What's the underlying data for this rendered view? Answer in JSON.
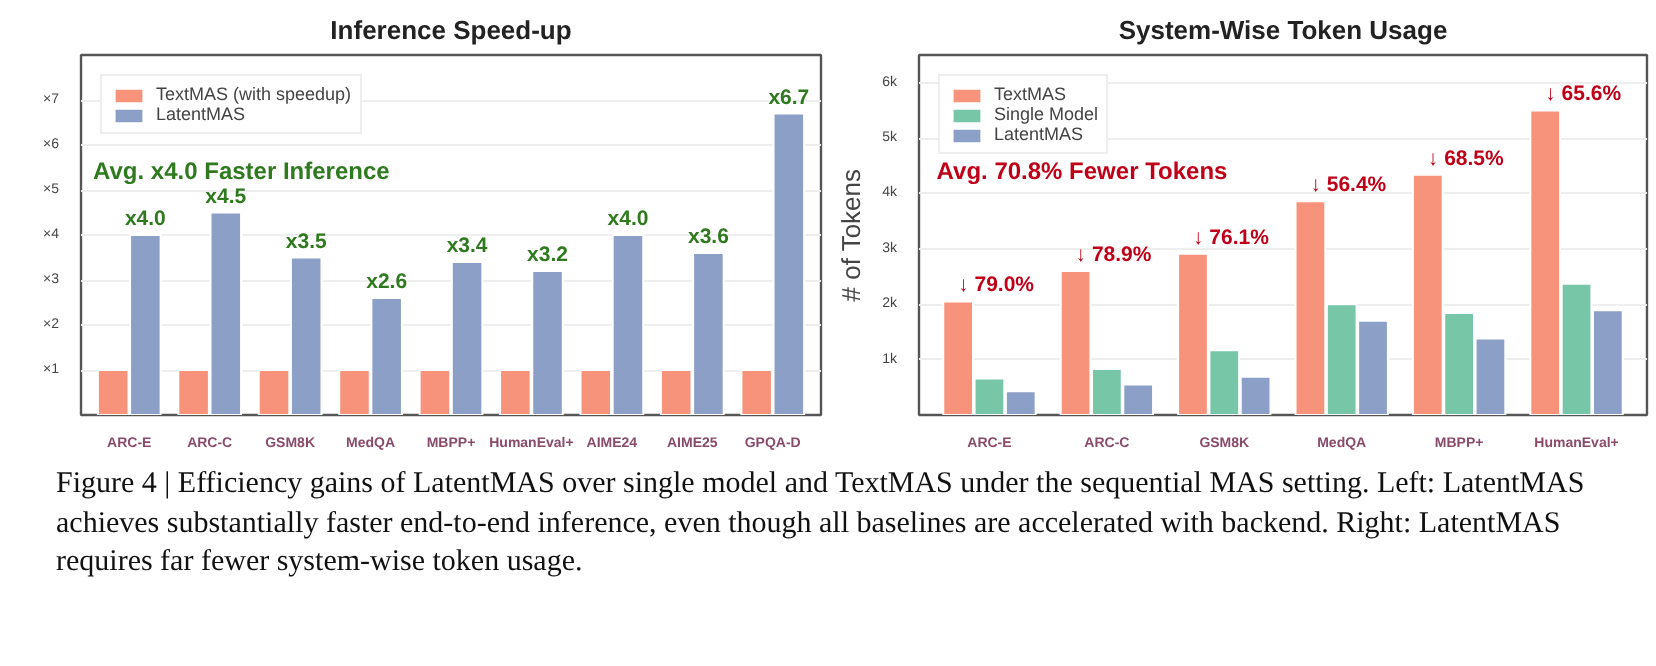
{
  "chart_data": [
    {
      "type": "bar",
      "title": "Inference Speed-up",
      "categories": [
        "ARC-E",
        "ARC-C",
        "GSM8K",
        "MedQA",
        "MBPP+",
        "HumanEval+",
        "AIME24",
        "AIME25",
        "GPQA-D"
      ],
      "series": [
        {
          "name": "TextMAS (with speedup)",
          "color": "#f7937a",
          "values": [
            1,
            1,
            1,
            1,
            1,
            1,
            1,
            1,
            1
          ]
        },
        {
          "name": "LatentMAS",
          "color": "#8c9fc7",
          "values": [
            4.0,
            4.5,
            3.5,
            2.6,
            3.4,
            3.2,
            4.0,
            3.6,
            6.7
          ],
          "value_labels": [
            "x4.0",
            "x4.5",
            "x3.5",
            "x2.6",
            "x3.4",
            "x3.2",
            "x4.0",
            "x3.6",
            "x6.7"
          ]
        }
      ],
      "ylim": [
        0,
        8
      ],
      "yticks": [
        {
          "value": 1,
          "label": "×1"
        },
        {
          "value": 2,
          "label": "×2"
        },
        {
          "value": 3,
          "label": "×3"
        },
        {
          "value": 4,
          "label": "×4"
        },
        {
          "value": 5,
          "label": "×5"
        },
        {
          "value": 6,
          "label": "×6"
        },
        {
          "value": 7,
          "label": "×7"
        }
      ],
      "grid": "y",
      "legend": "top left",
      "annotations": [
        "Avg. x4.0 Faster Inference",
        "Figure 4 | Efficiency gains of LatentMAS over single model and TextMAS under the sequential MAS setting. Left: LatentMAS achieves substantially faster end-to-end inference, even though all baselines are accelerated with backend. Right: LatentMAS requires far fewer system-wise token usage."
      ]
    },
    {
      "type": "bar",
      "title": "System-Wise Token Usage",
      "ylabel": "# of Tokens",
      "categories": [
        "ARC-E",
        "ARC-C",
        "GSM8K",
        "MedQA",
        "MBPP+",
        "HumanEval+"
      ],
      "series": [
        {
          "name": "TextMAS",
          "color": "#f7937a",
          "values": [
            2050,
            2600,
            2910,
            3860,
            4340,
            5500
          ]
        },
        {
          "name": "Single Model",
          "color": "#77c6a8",
          "values": [
            660,
            830,
            1170,
            2000,
            1840,
            2370
          ]
        },
        {
          "name": "LatentMAS",
          "color": "#8c9fc7",
          "values": [
            430,
            550,
            690,
            1700,
            1380,
            1890
          ]
        }
      ],
      "ylim": [
        0,
        6500
      ],
      "yticks": [
        {
          "value": 1000,
          "label": "1k"
        },
        {
          "value": 2000,
          "label": "2k"
        },
        {
          "value": 3000,
          "label": "3k"
        },
        {
          "value": 4000,
          "label": "4k"
        },
        {
          "value": 5000,
          "label": "5k"
        },
        {
          "value": 6000,
          "label": "6k"
        }
      ],
      "grid": "y",
      "legend": "top left",
      "annotations": [
        "Avg. 70.8% Fewer Tokens",
        "↓ 79.0%",
        "↓ 78.9%",
        "↓ 76.1%",
        "↓ 56.4%",
        "↓ 68.5%",
        "↓ 65.6%"
      ]
    }
  ]
}
